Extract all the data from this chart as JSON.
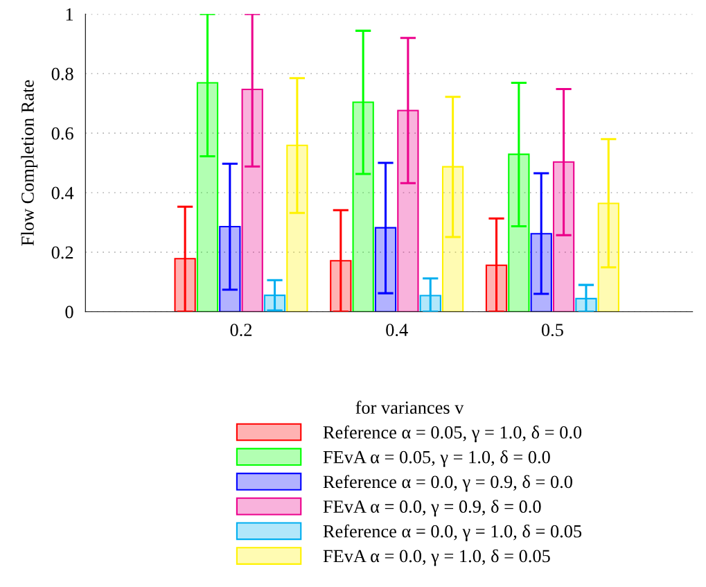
{
  "chart_data": {
    "type": "bar",
    "ylabel": "Flow Completion Rate",
    "legend_title": "for variances v",
    "categories": [
      "0.2",
      "0.4",
      "0.5"
    ],
    "series": [
      {
        "name": "Reference α = 0.05, γ = 1.0, δ = 0.0",
        "color": "#ff0000",
        "values": [
          0.178,
          0.171,
          0.156
        ],
        "errors": [
          [
            0.0,
            0.353
          ],
          [
            0.0,
            0.341
          ],
          [
            0.0,
            0.313
          ]
        ]
      },
      {
        "name": "FEvA α = 0.05, γ = 1.0, δ = 0.0",
        "color": "#00ff00",
        "values": [
          0.769,
          0.704,
          0.529
        ],
        "errors": [
          [
            0.522,
            1.0
          ],
          [
            0.463,
            0.944
          ],
          [
            0.287,
            0.769
          ]
        ]
      },
      {
        "name": "Reference α = 0.0, γ = 0.9, δ = 0.0",
        "color": "#0000ff",
        "values": [
          0.286,
          0.282,
          0.262
        ],
        "errors": [
          [
            0.074,
            0.497
          ],
          [
            0.062,
            0.5
          ],
          [
            0.06,
            0.465
          ]
        ]
      },
      {
        "name": "FEvA α = 0.0, γ = 0.9, δ = 0.0",
        "color": "#ec008c",
        "values": [
          0.747,
          0.676,
          0.503
        ],
        "errors": [
          [
            0.488,
            1.0
          ],
          [
            0.432,
            0.92
          ],
          [
            0.257,
            0.748
          ]
        ]
      },
      {
        "name": "Reference α = 0.0, γ = 1.0, δ = 0.05",
        "color": "#00aeef",
        "values": [
          0.055,
          0.054,
          0.044
        ],
        "errors": [
          [
            0.004,
            0.106
          ],
          [
            0.0,
            0.112
          ],
          [
            0.0,
            0.09
          ]
        ]
      },
      {
        "name": "FEvA α = 0.0, γ = 1.0, δ = 0.05",
        "color": "#fff200",
        "values": [
          0.559,
          0.487,
          0.364
        ],
        "errors": [
          [
            0.332,
            0.785
          ],
          [
            0.251,
            0.722
          ],
          [
            0.149,
            0.58
          ]
        ]
      }
    ],
    "ylim": [
      0,
      1
    ],
    "yticks": [
      0,
      0.2,
      0.4,
      0.6,
      0.8,
      1
    ],
    "grid": "y",
    "legend": "bottom"
  }
}
